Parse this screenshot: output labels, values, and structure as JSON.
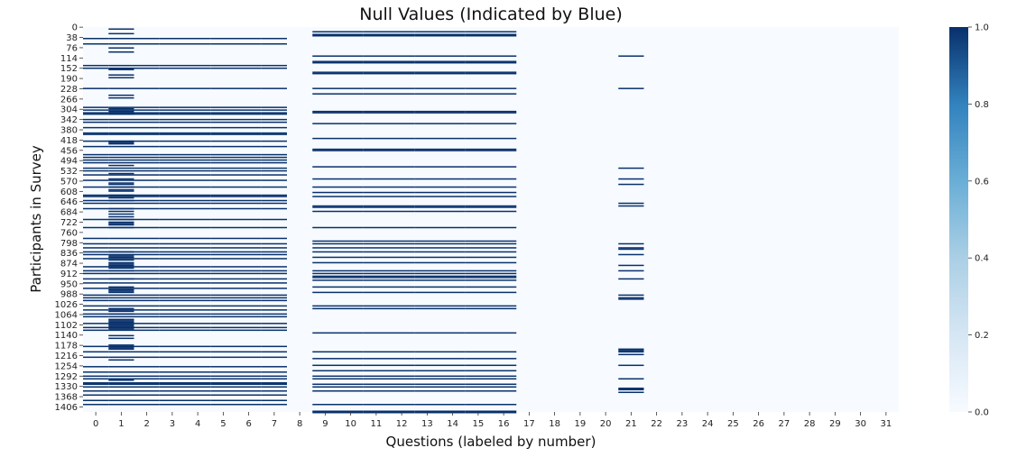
{
  "chart_data": {
    "type": "heatmap",
    "title": "Null Values (Indicated by Blue)",
    "xlabel": "Questions (labeled by number)",
    "ylabel": "Participants in Survey",
    "x_categories": [
      "0",
      "1",
      "2",
      "3",
      "4",
      "5",
      "6",
      "7",
      "8",
      "9",
      "10",
      "11",
      "12",
      "13",
      "14",
      "15",
      "16",
      "17",
      "18",
      "19",
      "20",
      "21",
      "22",
      "23",
      "24",
      "25",
      "26",
      "27",
      "28",
      "29",
      "30",
      "31"
    ],
    "y_tick_labels": [
      "0",
      "38",
      "76",
      "114",
      "152",
      "190",
      "228",
      "266",
      "304",
      "342",
      "380",
      "418",
      "456",
      "494",
      "532",
      "570",
      "608",
      "646",
      "684",
      "722",
      "760",
      "798",
      "836",
      "874",
      "912",
      "950",
      "988",
      "1026",
      "1064",
      "1102",
      "1140",
      "1178",
      "1216",
      "1254",
      "1292",
      "1330",
      "1368",
      "1406"
    ],
    "y_range": [
      0,
      1425
    ],
    "colorbar": {
      "range": [
        0.0,
        1.0
      ],
      "ticks": [
        "0.0",
        "0.2",
        "0.4",
        "0.6",
        "0.8",
        "1.0"
      ],
      "colormap": "Blues",
      "low_color": "#f7fbff",
      "high_color": "#08306b"
    },
    "null_rows_by_column": [
      {
        "columns": [
          1
        ],
        "rows": [
          5,
          22,
          75,
          90,
          155,
          175,
          185,
          250,
          260,
          300,
          310,
          315,
          320,
          420,
          425,
          430,
          510,
          540,
          560,
          575,
          580,
          590,
          600,
          605,
          620,
          630,
          640,
          670,
          680,
          690,
          700,
          710,
          720,
          725,
          730,
          740,
          830,
          845,
          850,
          860,
          870,
          875,
          880,
          885,
          890,
          900,
          930,
          960,
          970,
          975,
          980,
          1040,
          1050,
          1060,
          1080,
          1085,
          1090,
          1095,
          1100,
          1105,
          1110,
          1115,
          1140,
          1150,
          1175,
          1185,
          1190,
          1230,
          1305,
          1360
        ]
      },
      {
        "columns": [
          0,
          1,
          2,
          3,
          4,
          5,
          6,
          7
        ],
        "rows": [
          40,
          60,
          140,
          150,
          225,
          295,
          305,
          315,
          320,
          340,
          350,
          370,
          390,
          395,
          420,
          440,
          470,
          480,
          490,
          500,
          520,
          530,
          545,
          565,
          590,
          620,
          625,
          640,
          650,
          670,
          710,
          740,
          780,
          800,
          815,
          830,
          840,
          855,
          885,
          900,
          910,
          930,
          945,
          965,
          990,
          1000,
          1010,
          1030,
          1045,
          1060,
          1070,
          1095,
          1110,
          1120,
          1180,
          1200,
          1220,
          1255,
          1275,
          1290,
          1300,
          1315,
          1320,
          1330,
          1345,
          1360,
          1380,
          1395
        ]
      },
      {
        "columns": [
          9,
          10,
          11,
          12,
          13,
          14,
          15,
          16
        ],
        "rows": [
          15,
          25,
          30,
          105,
          125,
          130,
          165,
          170,
          225,
          245,
          310,
          315,
          355,
          410,
          450,
          455,
          515,
          560,
          590,
          610,
          625,
          660,
          665,
          680,
          740,
          790,
          800,
          815,
          830,
          850,
          870,
          900,
          910,
          920,
          925,
          935,
          960,
          980,
          1030,
          1040,
          1130,
          1200,
          1225,
          1250,
          1270,
          1290,
          1300,
          1320,
          1330,
          1345,
          1395,
          1420,
          1425
        ]
      },
      {
        "columns": [
          21
        ],
        "rows": [
          105,
          225,
          520,
          560,
          580,
          650,
          660,
          800,
          815,
          820,
          840,
          880,
          900,
          930,
          990,
          1000,
          1005,
          1190,
          1195,
          1200,
          1210,
          1250,
          1300,
          1335,
          1340,
          1350
        ]
      }
    ]
  }
}
